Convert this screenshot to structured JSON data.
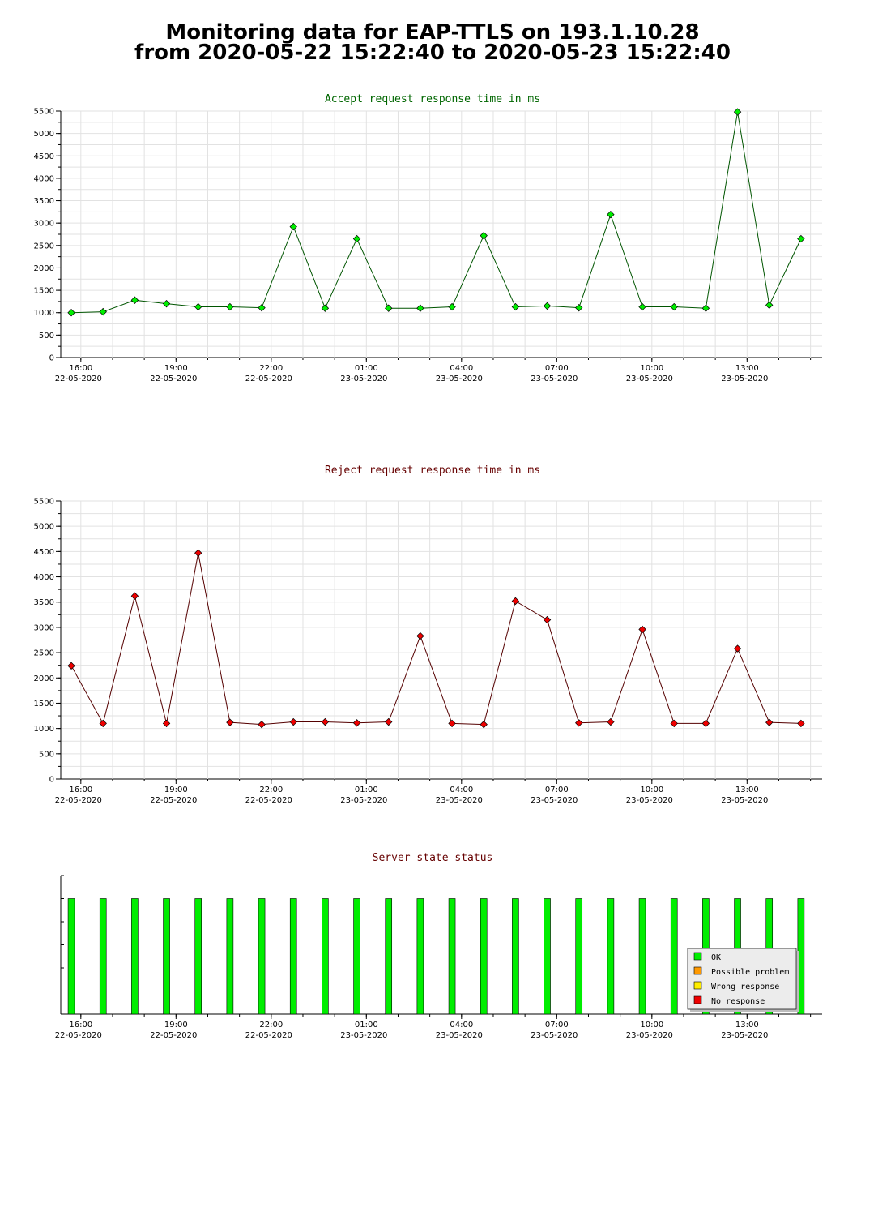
{
  "page": {
    "title_line1": "Monitoring data for EAP-TTLS on 193.1.10.28",
    "title_line2": "from 2020-05-22 15:22:40 to 2020-05-23 15:22:40"
  },
  "colors": {
    "accept_point": "#00ee00",
    "accept_line": "#005500",
    "accept_title": "#006600",
    "reject_point": "#ee0000",
    "reject_line": "#550000",
    "reject_title": "#660000",
    "status_title": "#660000",
    "ok": "#00ee00",
    "possible_problem": "#ff9900",
    "wrong_response": "#ffee00",
    "no_response": "#ee0000"
  },
  "chart_data": [
    {
      "id": "accept",
      "type": "line",
      "title": "Accept request response time in ms",
      "ylim": [
        0,
        5500
      ],
      "yticks": [
        0,
        500,
        1000,
        1500,
        2000,
        2500,
        3000,
        3500,
        4000,
        4500,
        5000,
        5500
      ],
      "xlim": [
        "2020-05-22 15:22",
        "2020-05-23 15:22"
      ],
      "x_ticks": [
        {
          "time": "16:00",
          "date": "22-05-2020"
        },
        {
          "time": "19:00",
          "date": "22-05-2020"
        },
        {
          "time": "22:00",
          "date": "22-05-2020"
        },
        {
          "time": "01:00",
          "date": "23-05-2020"
        },
        {
          "time": "04:00",
          "date": "23-05-2020"
        },
        {
          "time": "07:00",
          "date": "23-05-2020"
        },
        {
          "time": "10:00",
          "date": "23-05-2020"
        },
        {
          "time": "13:00",
          "date": "23-05-2020"
        }
      ],
      "grid": true,
      "series": [
        {
          "x": [
            "2020-05-22 15:42",
            "2020-05-22 16:42",
            "2020-05-22 17:42",
            "2020-05-22 18:42",
            "2020-05-22 19:42",
            "2020-05-22 20:42",
            "2020-05-22 21:42",
            "2020-05-22 22:42",
            "2020-05-22 23:42",
            "2020-05-23 00:42",
            "2020-05-23 01:42",
            "2020-05-23 02:42",
            "2020-05-23 03:42",
            "2020-05-23 04:42",
            "2020-05-23 05:42",
            "2020-05-23 06:42",
            "2020-05-23 07:42",
            "2020-05-23 08:42",
            "2020-05-23 09:42",
            "2020-05-23 10:42",
            "2020-05-23 11:42",
            "2020-05-23 12:42",
            "2020-05-23 13:42",
            "2020-05-23 14:42"
          ],
          "values": [
            1000,
            1020,
            1280,
            1200,
            1130,
            1130,
            1110,
            2920,
            1100,
            2650,
            1100,
            1100,
            1130,
            2720,
            1130,
            1150,
            1110,
            3190,
            1130,
            1130,
            1100,
            5480,
            1170,
            2650
          ]
        }
      ]
    },
    {
      "id": "reject",
      "type": "line",
      "title": "Reject request response time in ms",
      "ylim": [
        0,
        5500
      ],
      "yticks": [
        0,
        500,
        1000,
        1500,
        2000,
        2500,
        3000,
        3500,
        4000,
        4500,
        5000,
        5500
      ],
      "xlim": [
        "2020-05-22 15:22",
        "2020-05-23 15:22"
      ],
      "x_ticks": [
        {
          "time": "16:00",
          "date": "22-05-2020"
        },
        {
          "time": "19:00",
          "date": "22-05-2020"
        },
        {
          "time": "22:00",
          "date": "22-05-2020"
        },
        {
          "time": "01:00",
          "date": "23-05-2020"
        },
        {
          "time": "04:00",
          "date": "23-05-2020"
        },
        {
          "time": "07:00",
          "date": "23-05-2020"
        },
        {
          "time": "10:00",
          "date": "23-05-2020"
        },
        {
          "time": "13:00",
          "date": "23-05-2020"
        }
      ],
      "grid": true,
      "series": [
        {
          "x": [
            "2020-05-22 15:42",
            "2020-05-22 16:42",
            "2020-05-22 17:42",
            "2020-05-22 18:42",
            "2020-05-22 19:42",
            "2020-05-22 20:42",
            "2020-05-22 21:42",
            "2020-05-22 22:42",
            "2020-05-22 23:42",
            "2020-05-23 00:42",
            "2020-05-23 01:42",
            "2020-05-23 02:42",
            "2020-05-23 03:42",
            "2020-05-23 04:42",
            "2020-05-23 05:42",
            "2020-05-23 06:42",
            "2020-05-23 07:42",
            "2020-05-23 08:42",
            "2020-05-23 09:42",
            "2020-05-23 10:42",
            "2020-05-23 11:42",
            "2020-05-23 12:42",
            "2020-05-23 13:42",
            "2020-05-23 14:42"
          ],
          "values": [
            2240,
            1100,
            3620,
            1100,
            4470,
            1120,
            1080,
            1130,
            1130,
            1110,
            1130,
            2830,
            1100,
            1080,
            3520,
            3150,
            1110,
            1130,
            2960,
            1100,
            1100,
            2580,
            1120,
            1100
          ]
        }
      ]
    },
    {
      "id": "status",
      "type": "bar",
      "title": "Server state status",
      "xlim": [
        "2020-05-22 15:22",
        "2020-05-23 15:22"
      ],
      "x_ticks": [
        {
          "time": "16:00",
          "date": "22-05-2020"
        },
        {
          "time": "19:00",
          "date": "22-05-2020"
        },
        {
          "time": "22:00",
          "date": "22-05-2020"
        },
        {
          "time": "01:00",
          "date": "23-05-2020"
        },
        {
          "time": "04:00",
          "date": "23-05-2020"
        },
        {
          "time": "07:00",
          "date": "23-05-2020"
        },
        {
          "time": "10:00",
          "date": "23-05-2020"
        },
        {
          "time": "13:00",
          "date": "23-05-2020"
        }
      ],
      "legend": {
        "placement": "bottom-right",
        "entries": [
          {
            "label": "OK",
            "color": "#00ee00"
          },
          {
            "label": "Possible problem",
            "color": "#ff9900"
          },
          {
            "label": "Wrong response",
            "color": "#ffee00"
          },
          {
            "label": "No response",
            "color": "#ee0000"
          }
        ]
      },
      "series": [
        {
          "x": [
            "2020-05-22 15:42",
            "2020-05-22 16:42",
            "2020-05-22 17:42",
            "2020-05-22 18:42",
            "2020-05-22 19:42",
            "2020-05-22 20:42",
            "2020-05-22 21:42",
            "2020-05-22 22:42",
            "2020-05-22 23:42",
            "2020-05-23 00:42",
            "2020-05-23 01:42",
            "2020-05-23 02:42",
            "2020-05-23 03:42",
            "2020-05-23 04:42",
            "2020-05-23 05:42",
            "2020-05-23 06:42",
            "2020-05-23 07:42",
            "2020-05-23 08:42",
            "2020-05-23 09:42",
            "2020-05-23 10:42",
            "2020-05-23 11:42",
            "2020-05-23 12:42",
            "2020-05-23 13:42",
            "2020-05-23 14:42"
          ],
          "states": [
            "OK",
            "OK",
            "OK",
            "OK",
            "OK",
            "OK",
            "OK",
            "OK",
            "OK",
            "OK",
            "OK",
            "OK",
            "OK",
            "OK",
            "OK",
            "OK",
            "OK",
            "OK",
            "OK",
            "OK",
            "OK",
            "OK",
            "OK",
            "OK"
          ]
        }
      ]
    }
  ]
}
